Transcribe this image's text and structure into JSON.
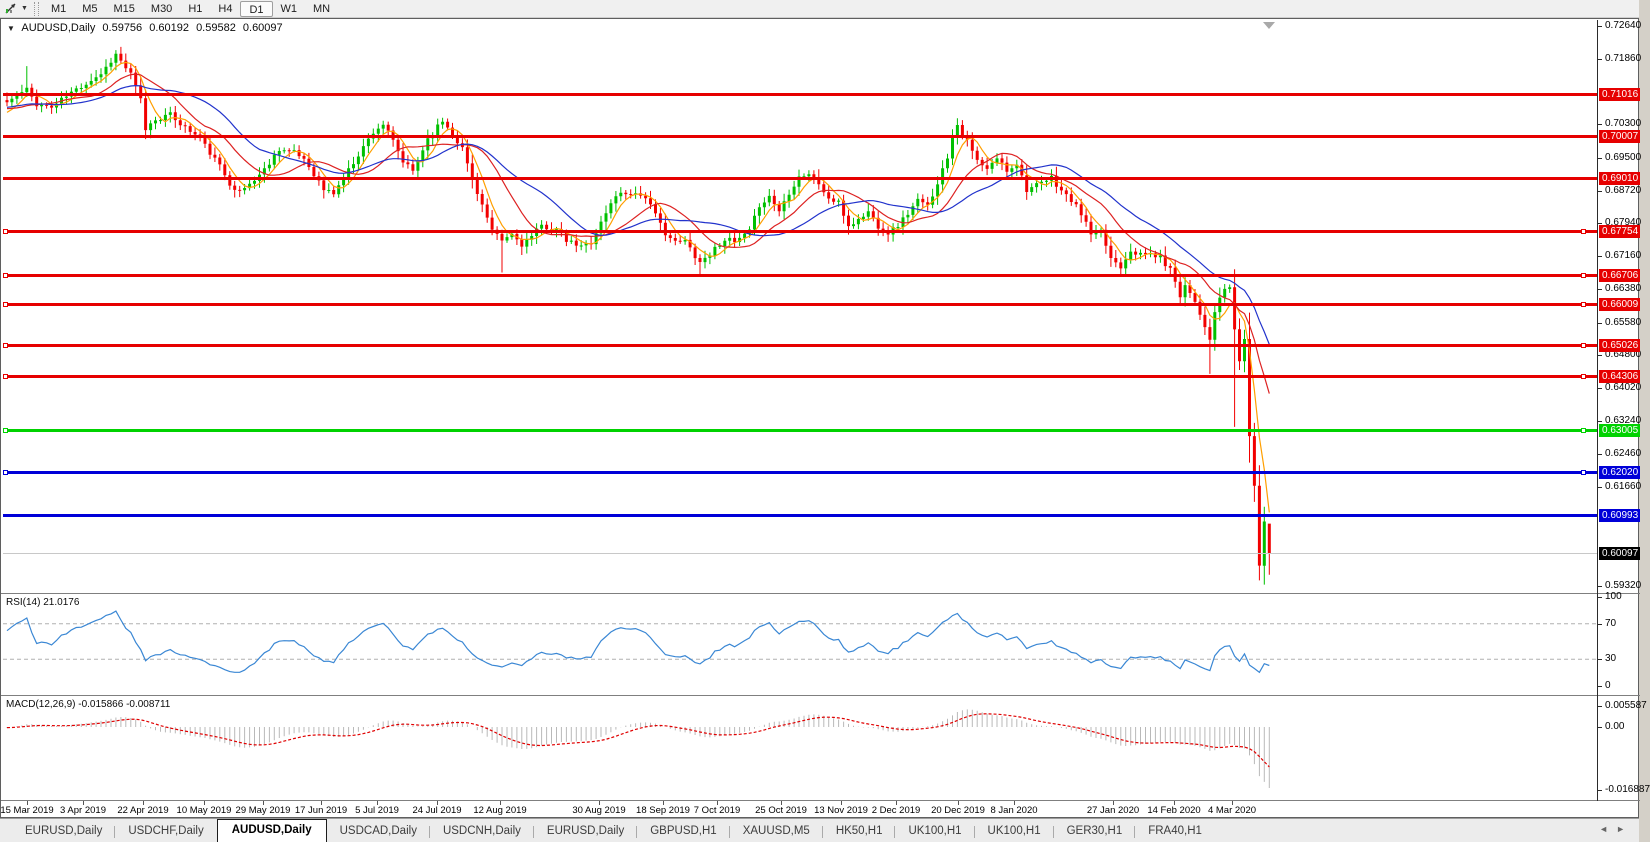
{
  "toolbar": {
    "chart_menu_icon": "chart-cursor-icon",
    "dropdown_icon": "▼",
    "timeframes": [
      "M1",
      "M5",
      "M15",
      "M30",
      "H1",
      "H4",
      "D1",
      "W1",
      "MN"
    ],
    "active_timeframe": "D1"
  },
  "chart": {
    "collapse_icon": "▼",
    "symbol": "AUDUSD,Daily",
    "open": "0.59756",
    "high": "0.60192",
    "low": "0.59582",
    "close": "0.60097"
  },
  "rsi_panel": {
    "label": "RSI(14) 21.0176",
    "axis_labels": [
      "100",
      "70",
      "30",
      "0"
    ]
  },
  "macd_panel": {
    "label": "MACD(12,26,9) -0.015866 -0.008711",
    "axis_labels": [
      "0.005587",
      "0.00",
      "-0.016887"
    ]
  },
  "tabs": {
    "items": [
      "EURUSD,Daily",
      "USDCHF,Daily",
      "AUDUSD,Daily",
      "USDCAD,Daily",
      "USDCNH,Daily",
      "EURUSD,Daily",
      "GBPUSD,H1",
      "XAUUSD,M5",
      "HK50,H1",
      "UK100,H1",
      "UK100,H1",
      "GER30,H1",
      "FRA40,H1"
    ],
    "active_index": 2,
    "prev_icon": "◄",
    "next_icon": "►"
  },
  "chart_data": {
    "type": "candlestick",
    "symbol": "AUDUSD",
    "timeframe": "Daily",
    "title_ohlc": {
      "open": 0.59756,
      "high": 0.60192,
      "low": 0.59582,
      "close": 0.60097
    },
    "bar_count": 256,
    "seed": 11,
    "last_bar_render_open": 0.608,
    "y_axis": {
      "top": 0.72752,
      "bottom": 0.59173,
      "ticks": [
        0.7264,
        0.7186,
        0.703,
        0.695,
        0.6872,
        0.6794,
        0.6716,
        0.6638,
        0.6558,
        0.648,
        0.6402,
        0.6324,
        0.6246,
        0.6166,
        0.5932
      ]
    },
    "x_axis": {
      "labels": [
        "15 Mar 2019",
        "3 Apr 2019",
        "22 Apr 2019",
        "10 May 2019",
        "29 May 2019",
        "17 Jun 2019",
        "5 Jul 2019",
        "24 Jul 2019",
        "12 Aug 2019",
        "30 Aug 2019",
        "18 Sep 2019",
        "7 Oct 2019",
        "25 Oct 2019",
        "13 Nov 2019",
        "2 Dec 2019",
        "20 Dec 2019",
        "8 Jan 2020",
        "27 Jan 2020",
        "14 Feb 2020",
        "4 Mar 2020"
      ],
      "label_x": [
        26,
        82,
        142,
        203,
        262,
        320,
        376,
        436,
        499,
        598,
        662,
        716,
        780,
        840,
        895,
        957,
        1013,
        1112,
        1173,
        1231
      ]
    },
    "close_path_anchors": [
      [
        0,
        0.7082
      ],
      [
        2,
        0.7098
      ],
      [
        4,
        0.7112
      ],
      [
        6,
        0.7078
      ],
      [
        9,
        0.707
      ],
      [
        11,
        0.7088
      ],
      [
        13,
        0.7105
      ],
      [
        16,
        0.7128
      ],
      [
        19,
        0.715
      ],
      [
        22,
        0.7196
      ],
      [
        23,
        0.718
      ],
      [
        25,
        0.7148
      ],
      [
        27,
        0.7088
      ],
      [
        28,
        0.7018
      ],
      [
        30,
        0.7042
      ],
      [
        33,
        0.7052
      ],
      [
        36,
        0.7022
      ],
      [
        39,
        0.6996
      ],
      [
        41,
        0.6962
      ],
      [
        43,
        0.693
      ],
      [
        45,
        0.689
      ],
      [
        47,
        0.6868
      ],
      [
        50,
        0.6898
      ],
      [
        52,
        0.6922
      ],
      [
        55,
        0.6972
      ],
      [
        58,
        0.6962
      ],
      [
        60,
        0.6948
      ],
      [
        62,
        0.6912
      ],
      [
        64,
        0.6874
      ],
      [
        66,
        0.6866
      ],
      [
        68,
        0.6902
      ],
      [
        71,
        0.6958
      ],
      [
        74,
        0.7012
      ],
      [
        76,
        0.703
      ],
      [
        78,
        0.6988
      ],
      [
        80,
        0.694
      ],
      [
        82,
        0.6918
      ],
      [
        85,
        0.6996
      ],
      [
        88,
        0.7038
      ],
      [
        90,
        0.7008
      ],
      [
        92,
        0.6972
      ],
      [
        94,
        0.69
      ],
      [
        96,
        0.6838
      ],
      [
        98,
        0.6774
      ],
      [
        100,
        0.6752
      ],
      [
        102,
        0.6768
      ],
      [
        104,
        0.6744
      ],
      [
        106,
        0.6762
      ],
      [
        108,
        0.6788
      ],
      [
        111,
        0.6778
      ],
      [
        113,
        0.6752
      ],
      [
        116,
        0.6738
      ],
      [
        118,
        0.675
      ],
      [
        120,
        0.6796
      ],
      [
        123,
        0.6862
      ],
      [
        126,
        0.6868
      ],
      [
        129,
        0.6858
      ],
      [
        131,
        0.6812
      ],
      [
        133,
        0.6772
      ],
      [
        135,
        0.6748
      ],
      [
        137,
        0.6752
      ],
      [
        139,
        0.6718
      ],
      [
        140,
        0.6702
      ],
      [
        142,
        0.6722
      ],
      [
        145,
        0.6758
      ],
      [
        147,
        0.6748
      ],
      [
        150,
        0.6774
      ],
      [
        152,
        0.6838
      ],
      [
        154,
        0.6858
      ],
      [
        156,
        0.6824
      ],
      [
        158,
        0.6868
      ],
      [
        160,
        0.6906
      ],
      [
        162,
        0.6912
      ],
      [
        164,
        0.6888
      ],
      [
        166,
        0.6852
      ],
      [
        168,
        0.6842
      ],
      [
        170,
        0.6788
      ],
      [
        172,
        0.6802
      ],
      [
        174,
        0.6822
      ],
      [
        176,
        0.6788
      ],
      [
        178,
        0.6772
      ],
      [
        180,
        0.679
      ],
      [
        182,
        0.6818
      ],
      [
        184,
        0.6848
      ],
      [
        186,
        0.6834
      ],
      [
        188,
        0.6892
      ],
      [
        190,
        0.6952
      ],
      [
        191,
        0.7002
      ],
      [
        192,
        0.703
      ],
      [
        194,
        0.6988
      ],
      [
        196,
        0.6942
      ],
      [
        198,
        0.692
      ],
      [
        200,
        0.695
      ],
      [
        202,
        0.692
      ],
      [
        204,
        0.6938
      ],
      [
        206,
        0.6875
      ],
      [
        209,
        0.6888
      ],
      [
        211,
        0.6902
      ],
      [
        213,
        0.6872
      ],
      [
        215,
        0.6848
      ],
      [
        217,
        0.6818
      ],
      [
        219,
        0.6768
      ],
      [
        221,
        0.6772
      ],
      [
        223,
        0.6712
      ],
      [
        225,
        0.6692
      ],
      [
        227,
        0.6732
      ],
      [
        229,
        0.6718
      ],
      [
        231,
        0.6722
      ],
      [
        233,
        0.6712
      ],
      [
        235,
        0.6684
      ],
      [
        236,
        0.6658
      ],
      [
        237,
        0.6624
      ],
      [
        238,
        0.6648
      ],
      [
        240,
        0.6612
      ],
      [
        241,
        0.6578
      ],
      [
        242,
        0.6552
      ],
      [
        243,
        0.6512
      ],
      [
        244,
        0.6582
      ],
      [
        245,
        0.6618
      ],
      [
        246,
        0.6638
      ],
      [
        247,
        0.6642
      ],
      [
        248,
        0.6542
      ],
      [
        249,
        0.6466
      ],
      [
        250,
        0.6519
      ],
      [
        251,
        0.6288
      ],
      [
        252,
        0.617
      ],
      [
        253,
        0.598
      ],
      [
        254,
        0.6085
      ],
      [
        255,
        0.60097
      ]
    ],
    "wick_overrides": {
      "4": {
        "h": 0.7168
      },
      "22": {
        "h": 0.7206
      },
      "100": {
        "l": 0.6677
      },
      "140": {
        "l": 0.667
      },
      "243": {
        "l": 0.6436
      },
      "248": {
        "h": 0.6685,
        "l": 0.631
      },
      "253": {
        "l": 0.5945
      },
      "254": {
        "h": 0.612,
        "l": 0.5935
      },
      "255": {
        "h": 0.60192,
        "l": 0.59582
      }
    },
    "colors": {
      "bull": "#00c000",
      "bear": "#f20000",
      "ma_fast": "#ff9f00",
      "ma_mid": "#dd2222",
      "ma_slow": "#2233cc",
      "rsi_line": "#3a87d4",
      "macd_hist": "#b9b9b9",
      "macd_signal": "#e00000",
      "level_dash": "#b0b0b0"
    },
    "moving_averages": [
      {
        "period": 5,
        "color_key": "ma_fast"
      },
      {
        "period": 13,
        "color_key": "ma_mid"
      },
      {
        "period": 24,
        "color_key": "ma_slow"
      }
    ],
    "horizontal_lines": [
      {
        "price": 0.71016,
        "label": "0.71016",
        "color": "#e60000",
        "width": 3,
        "handles": false
      },
      {
        "price": 0.70007,
        "label": "0.70007",
        "color": "#e60000",
        "width": 3,
        "handles": false
      },
      {
        "price": 0.6901,
        "label": "0.69010",
        "color": "#e60000",
        "width": 3,
        "handles": false
      },
      {
        "price": 0.67754,
        "label": "0.67754",
        "color": "#e60000",
        "width": 3,
        "handles": true
      },
      {
        "price": 0.66706,
        "label": "0.66706",
        "color": "#e60000",
        "width": 3,
        "handles": true
      },
      {
        "price": 0.66009,
        "label": "0.66009",
        "color": "#e60000",
        "width": 3,
        "handles": true
      },
      {
        "price": 0.65026,
        "label": "0.65026",
        "color": "#e60000",
        "width": 3,
        "handles": true
      },
      {
        "price": 0.64306,
        "label": "0.64306",
        "color": "#e60000",
        "width": 3,
        "handles": true
      },
      {
        "price": 0.63005,
        "label": "0.63005",
        "color": "#00d200",
        "width": 3,
        "handles": true
      },
      {
        "price": 0.6202,
        "label": "0.62020",
        "color": "#0000d8",
        "width": 3,
        "handles": true
      },
      {
        "price": 0.60993,
        "label": "0.60993",
        "color": "#0000d8",
        "width": 3,
        "handles": false
      },
      {
        "price": 0.60097,
        "label": "0.60097",
        "color": "#000000",
        "width": 1,
        "handles": false,
        "current": true
      }
    ],
    "indicators": [
      {
        "name": "RSI",
        "period": 14,
        "value": 21.0176,
        "levels": [
          100,
          70,
          30,
          0
        ],
        "dashed_levels": [
          70,
          30
        ]
      },
      {
        "name": "MACD",
        "params": [
          12,
          26,
          9
        ],
        "values": [
          -0.015866,
          -0.008711
        ],
        "axis": [
          0.005587,
          0.0,
          -0.016887
        ]
      }
    ]
  }
}
